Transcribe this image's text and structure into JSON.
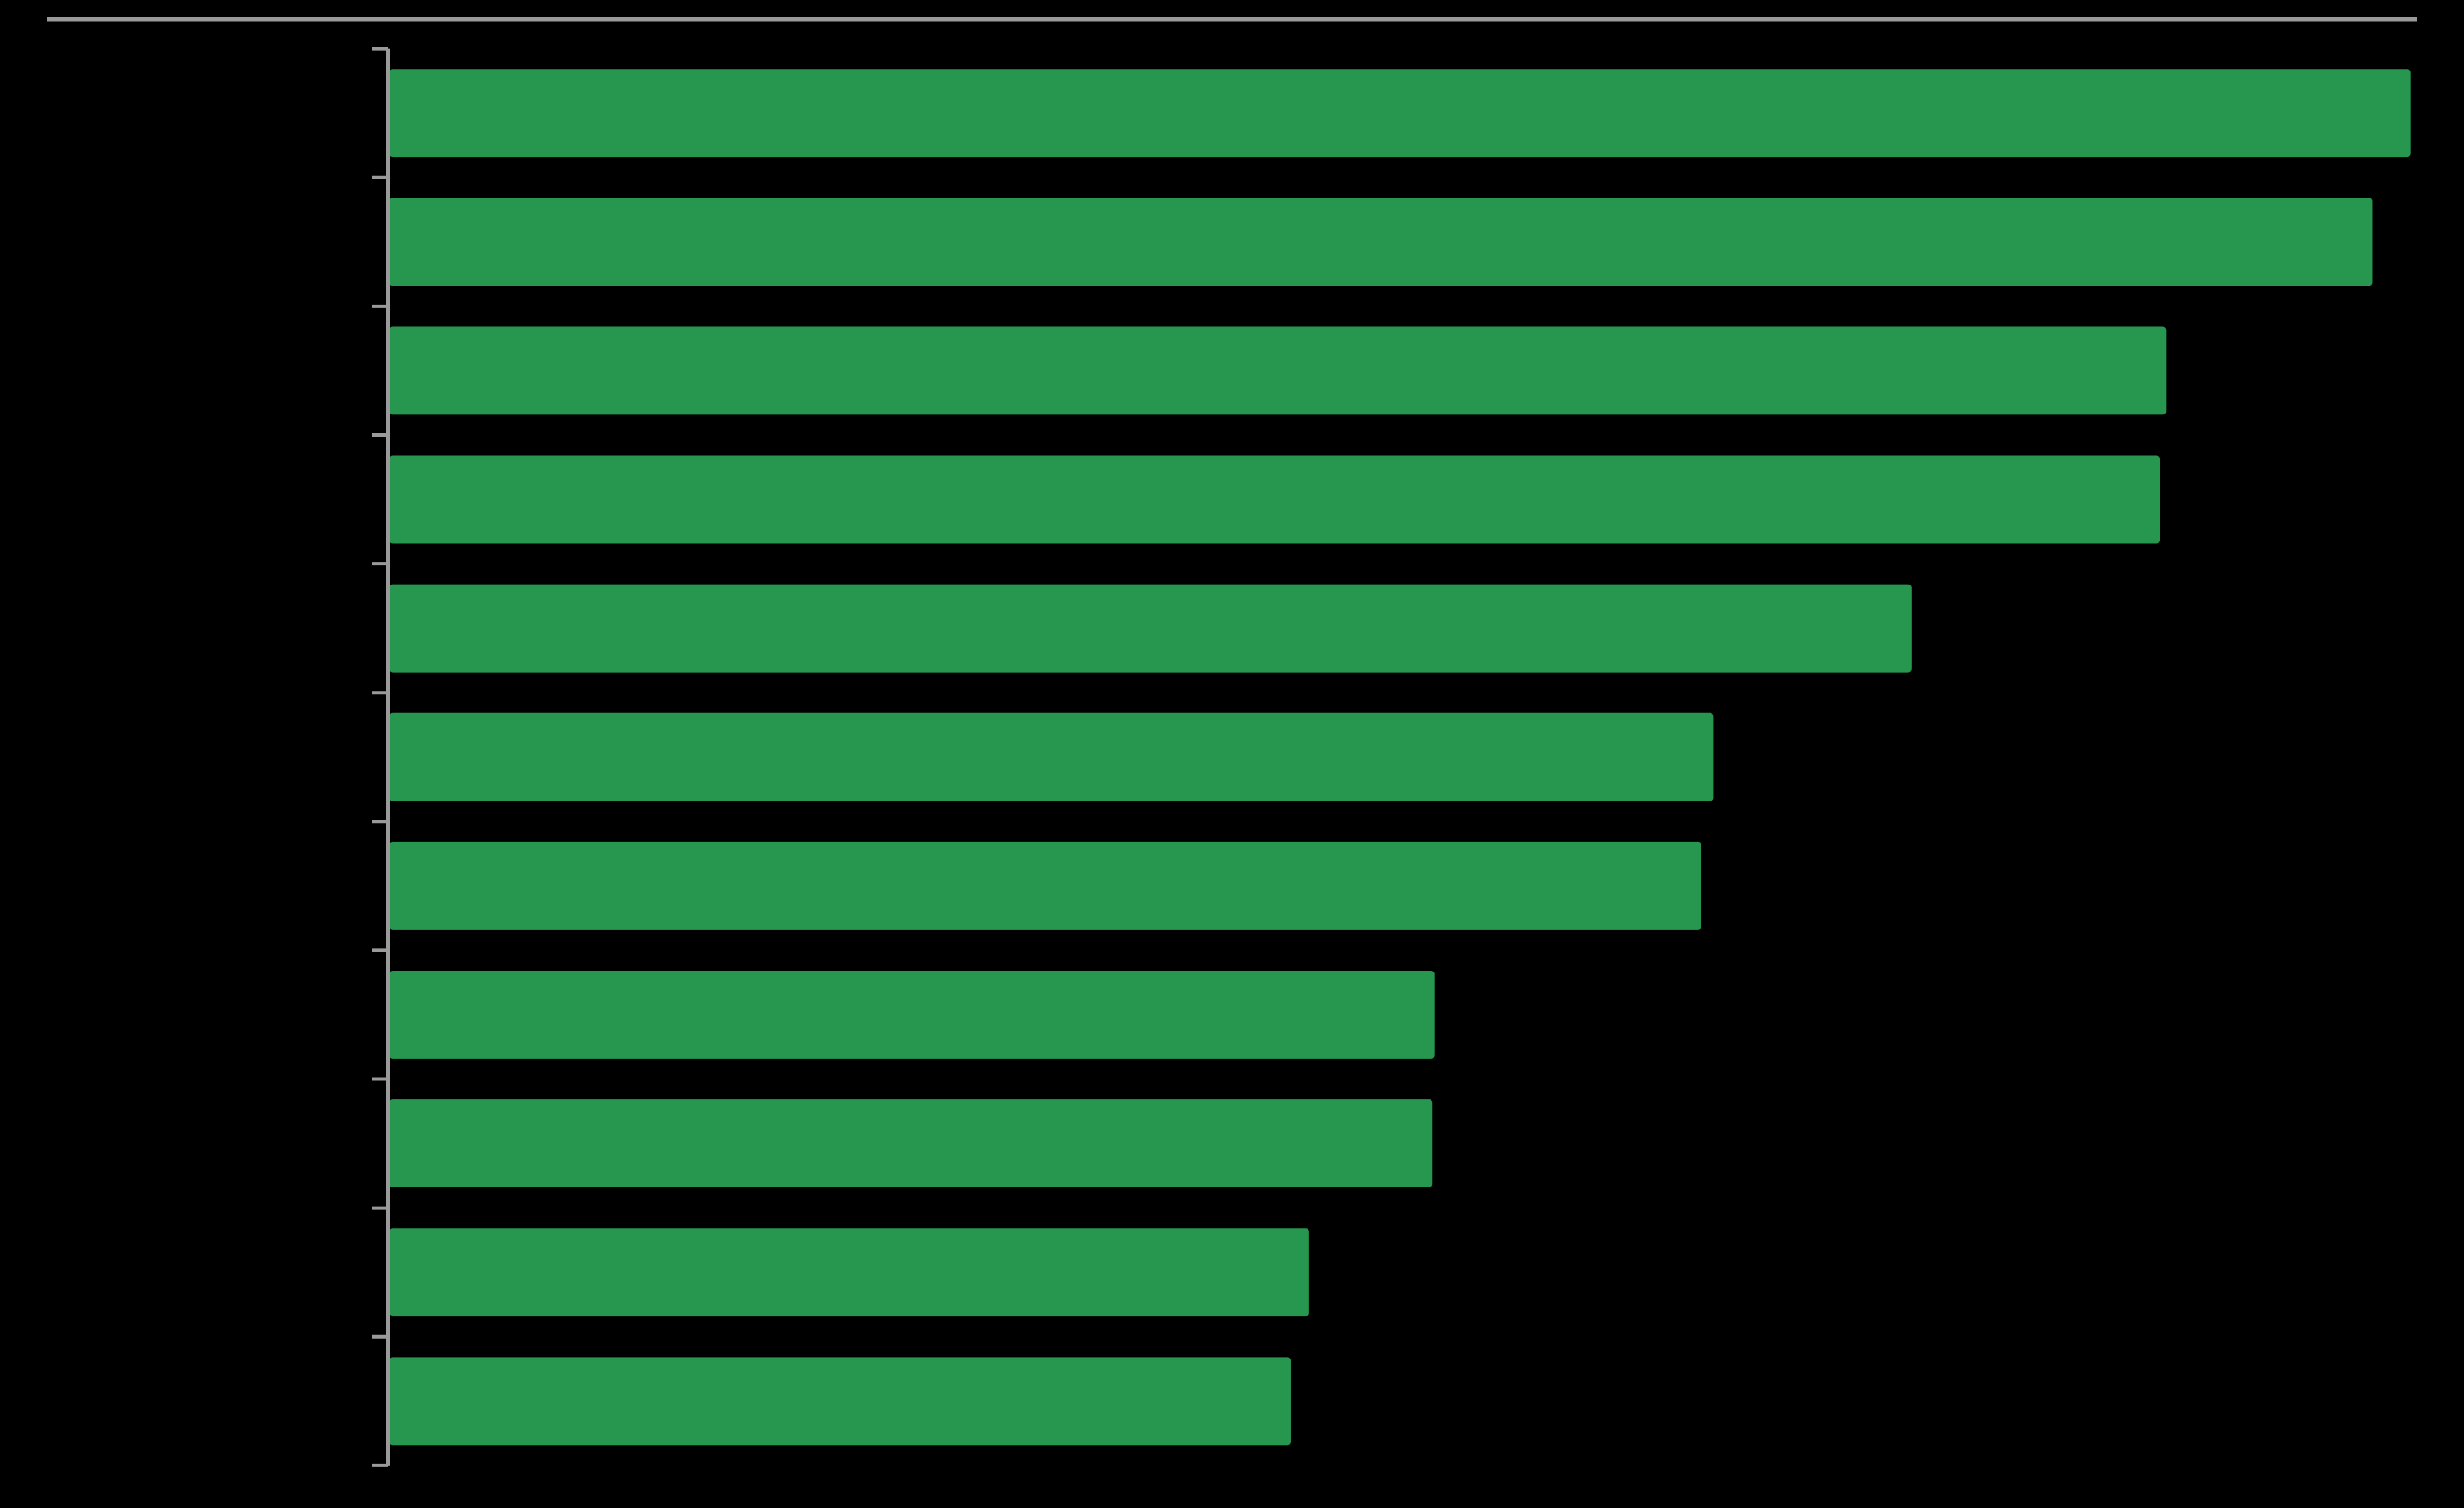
{
  "chart_data": {
    "type": "bar",
    "orientation": "horizontal",
    "categories": [
      null,
      null,
      null,
      null,
      null,
      null,
      null,
      null,
      null,
      null,
      null
    ],
    "values": [
      100,
      98.1,
      87.9,
      87.6,
      75.3,
      65.5,
      64.9,
      51.7,
      51.6,
      45.5,
      44.6
    ],
    "color": "#27964f",
    "xlim": [
      0,
      100
    ]
  }
}
